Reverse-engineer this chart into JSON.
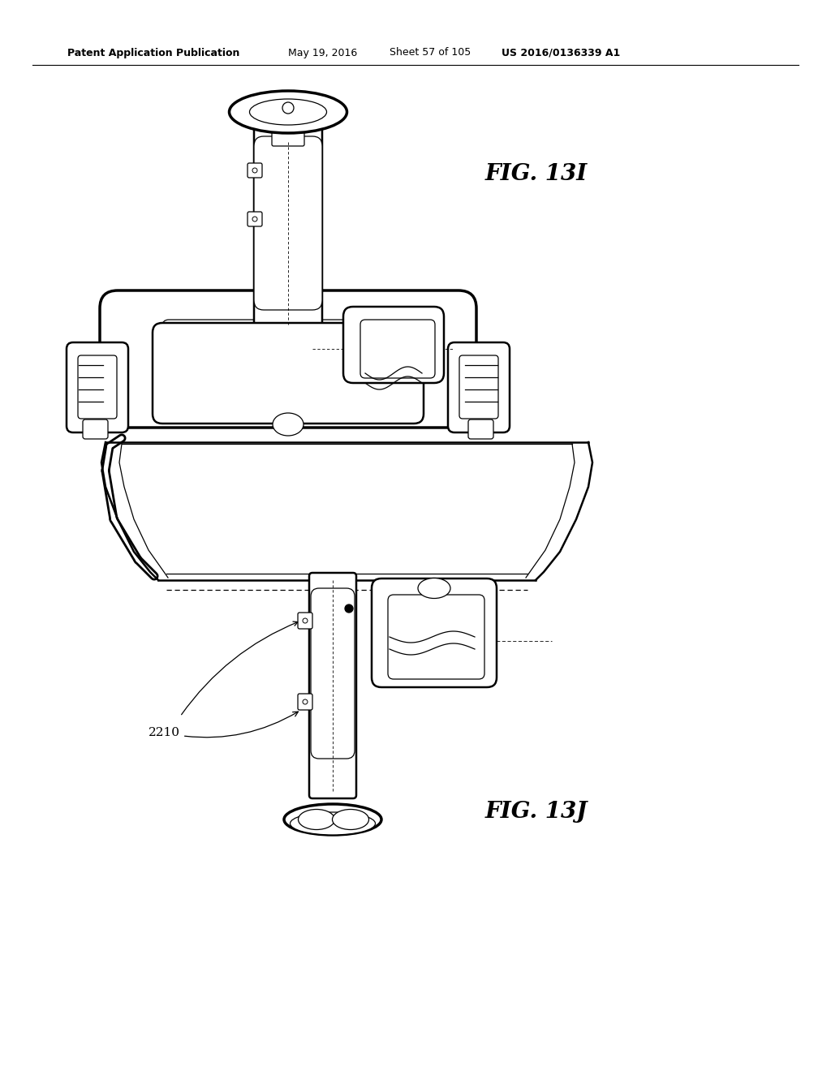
{
  "background_color": "#ffffff",
  "header_text": "Patent Application Publication",
  "header_date": "May 19, 2016",
  "header_sheet": "Sheet 57 of 105",
  "header_patent": "US 2016/0136339 A1",
  "fig_label_1": "FIG. 13I",
  "fig_label_2": "FIG. 13J",
  "callout_2210": "2210",
  "fig_width": 10.24,
  "fig_height": 13.2,
  "dpi": 100
}
